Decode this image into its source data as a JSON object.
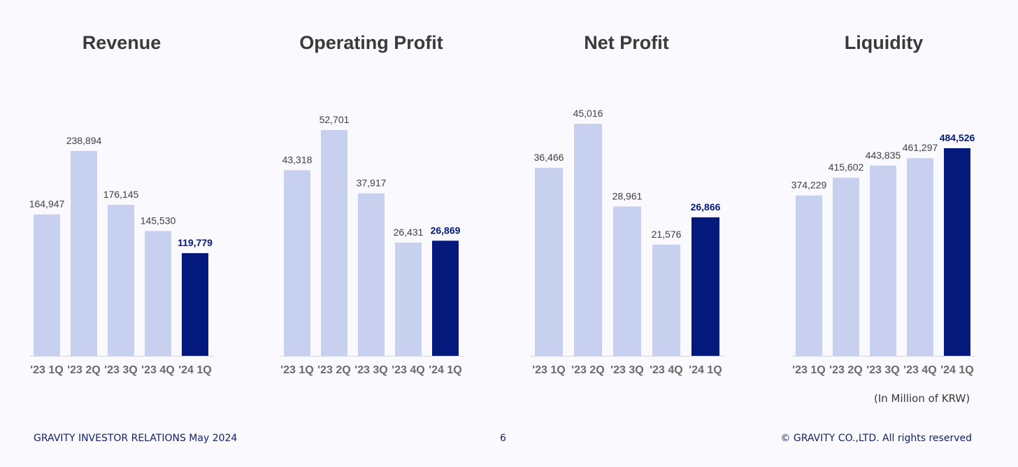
{
  "colors": {
    "background": "#f9f9fe",
    "bar_light": "#c8d0f0",
    "bar_highlight": "#031a7c",
    "label_default": "#404040",
    "label_highlight": "#031a7c",
    "tick_label": "#6a6a6a",
    "title": "#3a3a3a",
    "footer": "#14226e"
  },
  "chart_data": [
    {
      "type": "bar",
      "title": "Revenue",
      "categories": [
        "'23 1Q",
        "'23 2Q",
        "'23 3Q",
        "'23 4Q",
        "'24 1Q"
      ],
      "values": [
        164947,
        238894,
        176145,
        145530,
        119779
      ],
      "value_labels": [
        "164,947",
        "238,894",
        "176,145",
        "145,530",
        "119,779"
      ],
      "highlight_index": 4,
      "grid": false
    },
    {
      "type": "bar",
      "title": "Operating Profit",
      "categories": [
        "'23 1Q",
        "'23 2Q",
        "'23 3Q",
        "'23 4Q",
        "'24 1Q"
      ],
      "values": [
        43318,
        52701,
        37917,
        26431,
        26869
      ],
      "value_labels": [
        "43,318",
        "52,701",
        "37,917",
        "26,431",
        "26,869"
      ],
      "highlight_index": 4,
      "grid": false
    },
    {
      "type": "bar",
      "title": "Net Profit",
      "categories": [
        "'23 1Q",
        "'23 2Q",
        "'23 3Q",
        "'23 4Q",
        "'24 1Q"
      ],
      "values": [
        36466,
        45016,
        28961,
        21576,
        26866
      ],
      "value_labels": [
        "36,466",
        "45,016",
        "28,961",
        "21,576",
        "26,866"
      ],
      "highlight_index": 4,
      "grid": false
    },
    {
      "type": "bar",
      "title": "Liquidity",
      "categories": [
        "'23 1Q",
        "'23 2Q",
        "'23 3Q",
        "'23 4Q",
        "'24 1Q"
      ],
      "values": [
        374229,
        415602,
        443835,
        461297,
        484526
      ],
      "value_labels": [
        "374,229",
        "415,602",
        "443,835",
        "461,297",
        "484,526"
      ],
      "highlight_index": 4,
      "grid": false
    }
  ],
  "unit_note": "(In Million of KRW)",
  "footer": {
    "left": "GRAVITY INVESTOR RELATIONS May 2024",
    "page_number": "6",
    "right": "© GRAVITY CO.,LTD. All rights reserved"
  }
}
